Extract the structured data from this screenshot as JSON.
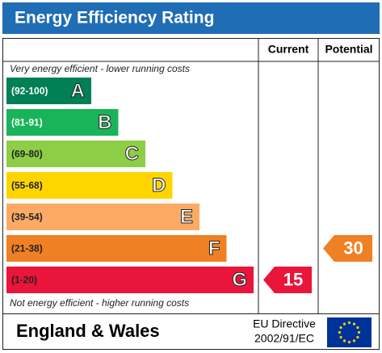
{
  "title": "Energy Efficiency Rating",
  "columns": [
    "Current",
    "Potential"
  ],
  "top_note": "Very energy efficient - lower running costs",
  "bottom_note": "Not energy efficient - higher running costs",
  "bands": [
    {
      "range": "(92-100)",
      "letter": "A",
      "color": "#008054",
      "text_color": "#ffffff"
    },
    {
      "range": "(81-91)",
      "letter": "B",
      "color": "#19b459",
      "text_color": "#ffffff"
    },
    {
      "range": "(69-80)",
      "letter": "C",
      "color": "#8dce46",
      "text_color": "#222222"
    },
    {
      "range": "(55-68)",
      "letter": "D",
      "color": "#ffd500",
      "text_color": "#222222"
    },
    {
      "range": "(39-54)",
      "letter": "E",
      "color": "#fcaa65",
      "text_color": "#222222"
    },
    {
      "range": "(21-38)",
      "letter": "F",
      "color": "#ef8023",
      "text_color": "#222222"
    },
    {
      "range": "(1-20)",
      "letter": "G",
      "color": "#e9153b",
      "text_color": "#222222"
    }
  ],
  "current": 15,
  "potential": 30,
  "footer": {
    "region": "England & Wales",
    "directive": [
      "EU Directive",
      "2002/91/EC"
    ]
  }
}
